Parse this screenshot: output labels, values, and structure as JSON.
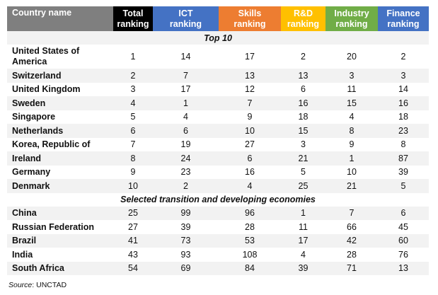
{
  "headers": {
    "country": "Country name",
    "total": [
      "Total",
      "ranking"
    ],
    "ict": [
      "ICT",
      "ranking"
    ],
    "skills": [
      "Skills",
      "ranking"
    ],
    "rd": [
      "R&D",
      "ranking"
    ],
    "industry": [
      "Industry",
      "ranking"
    ],
    "finance": [
      "Finance",
      "ranking"
    ]
  },
  "section_top": "Top 10",
  "section_selected": "Selected transition and developing economies",
  "top10": [
    {
      "country": "United States of America",
      "total": "1",
      "ict": "14",
      "skills": "17",
      "rd": "2",
      "industry": "20",
      "finance": "2"
    },
    {
      "country": "Switzerland",
      "total": "2",
      "ict": "7",
      "skills": "13",
      "rd": "13",
      "industry": "3",
      "finance": "3"
    },
    {
      "country": "United Kingdom",
      "total": "3",
      "ict": "17",
      "skills": "12",
      "rd": "6",
      "industry": "11",
      "finance": "14"
    },
    {
      "country": "Sweden",
      "total": "4",
      "ict": "1",
      "skills": "7",
      "rd": "16",
      "industry": "15",
      "finance": "16"
    },
    {
      "country": "Singapore",
      "total": "5",
      "ict": "4",
      "skills": "9",
      "rd": "18",
      "industry": "4",
      "finance": "18"
    },
    {
      "country": "Netherlands",
      "total": "6",
      "ict": "6",
      "skills": "10",
      "rd": "15",
      "industry": "8",
      "finance": "23"
    },
    {
      "country": "Korea, Republic of",
      "total": "7",
      "ict": "19",
      "skills": "27",
      "rd": "3",
      "industry": "9",
      "finance": "8"
    },
    {
      "country": "Ireland",
      "total": "8",
      "ict": "24",
      "skills": "6",
      "rd": "21",
      "industry": "1",
      "finance": "87"
    },
    {
      "country": "Germany",
      "total": "9",
      "ict": "23",
      "skills": "16",
      "rd": "5",
      "industry": "10",
      "finance": "39"
    },
    {
      "country": "Denmark",
      "total": "10",
      "ict": "2",
      "skills": "4",
      "rd": "25",
      "industry": "21",
      "finance": "5"
    }
  ],
  "selected": [
    {
      "country": "China",
      "total": "25",
      "ict": "99",
      "skills": "96",
      "rd": "1",
      "industry": "7",
      "finance": "6"
    },
    {
      "country": "Russian Federation",
      "total": "27",
      "ict": "39",
      "skills": "28",
      "rd": "11",
      "industry": "66",
      "finance": "45"
    },
    {
      "country": "Brazil",
      "total": "41",
      "ict": "73",
      "skills": "53",
      "rd": "17",
      "industry": "42",
      "finance": "60"
    },
    {
      "country": "India",
      "total": "43",
      "ict": "93",
      "skills": "108",
      "rd": "4",
      "industry": "28",
      "finance": "76"
    },
    {
      "country": "South Africa",
      "total": "54",
      "ict": "69",
      "skills": "84",
      "rd": "39",
      "industry": "71",
      "finance": "13"
    }
  ],
  "source_label": "Source",
  "source_text": ": UNCTAD"
}
